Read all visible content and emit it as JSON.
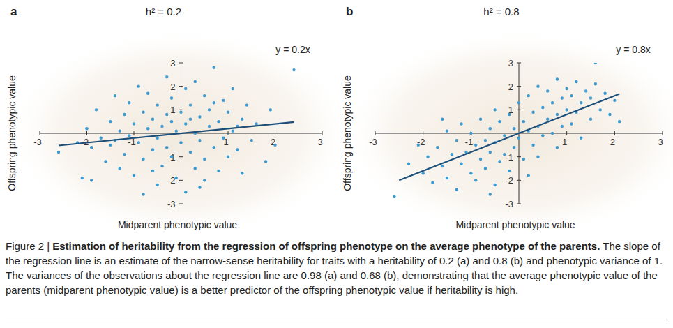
{
  "chart_data": [
    {
      "type": "scatter",
      "panel_label": "a",
      "title": "h² = 0.2",
      "xlabel": "Midparent phenotypic value",
      "ylabel": "Offspring phenotypic value",
      "annotations": [
        {
          "text": "y = 0.2x"
        }
      ],
      "xlim": [
        -3,
        3
      ],
      "ylim": [
        -3,
        3
      ],
      "xticks": [
        -3,
        -2,
        -1,
        1,
        2,
        3
      ],
      "yticks": [
        -3,
        -2,
        -1,
        1,
        2,
        3
      ],
      "series": [
        {
          "type": "scatter",
          "marker": "circle",
          "color": "#3d9ad1",
          "x": [
            -2.6,
            -2.2,
            -2.1,
            -2.0,
            -1.9,
            -1.8,
            -1.7,
            -1.6,
            -1.5,
            -1.5,
            -1.4,
            -1.3,
            -1.3,
            -1.2,
            -1.2,
            -1.1,
            -1.1,
            -1.0,
            -1.0,
            -0.9,
            -0.9,
            -0.8,
            -0.8,
            -0.7,
            -0.7,
            -0.6,
            -0.6,
            -0.5,
            -0.5,
            -0.5,
            -0.4,
            -0.4,
            -0.3,
            -0.3,
            -0.3,
            -0.2,
            -0.2,
            -0.1,
            -0.1,
            0.0,
            0.0,
            0.1,
            0.1,
            0.1,
            0.2,
            0.2,
            0.3,
            0.3,
            0.3,
            0.4,
            0.4,
            0.5,
            0.5,
            0.5,
            0.6,
            0.6,
            0.7,
            0.7,
            0.8,
            0.8,
            0.9,
            0.9,
            1.0,
            1.0,
            1.1,
            1.1,
            1.2,
            1.3,
            1.3,
            1.4,
            1.5,
            1.6,
            1.8,
            1.9,
            2.0,
            2.4,
            -1.9,
            -0.2,
            0.2,
            -0.6,
            0.7,
            1.2,
            -1.4,
            0.4,
            -0.8
          ],
          "values": [
            -0.8,
            -0.4,
            -1.9,
            0.2,
            -0.6,
            1.0,
            -0.2,
            -1.2,
            0.5,
            -0.5,
            1.6,
            0.1,
            -1.5,
            0.8,
            -0.9,
            -0.1,
            1.3,
            0.4,
            -1.8,
            2.0,
            -0.4,
            0.9,
            -1.1,
            0.2,
            1.7,
            -0.7,
            0.6,
            -2.2,
            1.2,
            -0.2,
            0.3,
            -1.4,
            2.4,
            0.8,
            -0.6,
            1.5,
            -1.0,
            0.1,
            -1.9,
            0.9,
            -0.4,
            1.9,
            -2.5,
            0.4,
            -0.8,
            1.2,
            0.0,
            -1.5,
            2.2,
            0.7,
            -0.3,
            1.6,
            -1.1,
            -2.0,
            0.3,
            1.0,
            -0.6,
            2.8,
            0.5,
            -1.6,
            1.4,
            -0.2,
            0.9,
            -1.0,
            1.9,
            0.1,
            -0.7,
            0.6,
            -1.7,
            1.2,
            -0.3,
            0.4,
            -1.2,
            1.0,
            -0.5,
            2.7,
            -2.0,
            0.5,
            0.6,
            -1.6,
            1.3,
            0.3,
            -0.3,
            -2.3,
            -2.6
          ]
        },
        {
          "type": "line",
          "line_style": "solid",
          "color": "#1b4f7a",
          "x": [
            -2.6,
            2.4
          ],
          "values": [
            -0.52,
            0.48
          ]
        }
      ]
    },
    {
      "type": "scatter",
      "panel_label": "b",
      "title": "h² = 0.8",
      "xlabel": "Midparent phenotypic value",
      "ylabel": "Offspring phenotypic value",
      "annotations": [
        {
          "text": "y = 0.8x"
        }
      ],
      "xlim": [
        -3,
        3
      ],
      "ylim": [
        -3,
        3
      ],
      "xticks": [
        -3,
        -2,
        -1,
        1,
        2,
        3
      ],
      "yticks": [
        -3,
        -2,
        -1,
        1,
        2,
        3
      ],
      "series": [
        {
          "type": "scatter",
          "marker": "circle",
          "color": "#3d9ad1",
          "x": [
            -2.6,
            -2.3,
            -2.1,
            -2.0,
            -1.9,
            -1.8,
            -1.7,
            -1.6,
            -1.5,
            -1.5,
            -1.4,
            -1.3,
            -1.3,
            -1.2,
            -1.2,
            -1.1,
            -1.0,
            -1.0,
            -0.9,
            -0.9,
            -0.8,
            -0.8,
            -0.7,
            -0.7,
            -0.6,
            -0.6,
            -0.5,
            -0.5,
            -0.5,
            -0.4,
            -0.4,
            -0.3,
            -0.3,
            -0.2,
            -0.2,
            -0.1,
            -0.1,
            0.0,
            0.0,
            0.1,
            0.1,
            0.2,
            0.2,
            0.3,
            0.3,
            0.4,
            0.4,
            0.4,
            0.5,
            0.5,
            0.6,
            0.6,
            0.7,
            0.7,
            0.8,
            0.8,
            0.8,
            0.9,
            0.9,
            1.0,
            1.0,
            1.1,
            1.1,
            1.2,
            1.2,
            1.3,
            1.3,
            1.4,
            1.5,
            1.5,
            1.6,
            1.7,
            1.8,
            1.9,
            2.0,
            2.1,
            1.6,
            -0.6,
            0.2,
            -1.6
          ],
          "values": [
            -2.7,
            -1.3,
            -0.5,
            -1.7,
            -1.0,
            -2.1,
            -0.6,
            -1.4,
            0.1,
            -1.9,
            -0.9,
            -2.4,
            -0.3,
            -1.3,
            0.4,
            -0.8,
            -1.7,
            0.0,
            -0.5,
            -2.0,
            -1.1,
            0.6,
            -0.3,
            -1.5,
            0.2,
            -0.8,
            -2.2,
            1.0,
            -0.4,
            -1.2,
            0.5,
            -0.1,
            -0.9,
            0.8,
            -1.6,
            0.2,
            -0.6,
            1.3,
            -0.2,
            0.5,
            -1.1,
            0.1,
            1.6,
            -0.5,
            0.9,
            0.3,
            2.0,
            -1.0,
            1.1,
            -0.1,
            0.6,
            1.8,
            0.0,
            1.3,
            0.8,
            2.3,
            -0.6,
            1.5,
            0.3,
            1.0,
            1.9,
            0.4,
            1.6,
            2.2,
            0.9,
            1.3,
            -0.2,
            1.8,
            0.6,
            1.5,
            2.1,
            1.0,
            1.7,
            0.8,
            1.4,
            0.5,
            3.0,
            -2.6,
            -1.8,
            0.6
          ]
        },
        {
          "type": "line",
          "line_style": "solid",
          "color": "#1b4f7a",
          "x": [
            -2.5,
            2.1
          ],
          "values": [
            -2.0,
            1.68
          ]
        }
      ]
    }
  ],
  "caption": {
    "label": "Figure 2 |",
    "title": "Estimation of heritability from the regression of offspring phenotype on the average phenotype of the parents.",
    "text": "The slope of the regression line is an estimate of the narrow-sense heritability for traits with a heritability of 0.2 (a) and 0.8 (b) and phenotypic variance of 1. The variances of the observations about the regression line are 0.98 (a) and 0.68 (b), demonstrating that the average phenotypic value of the parents (midparent phenotypic value) is a better predictor of the offspring phenotypic value if heritability is high."
  }
}
